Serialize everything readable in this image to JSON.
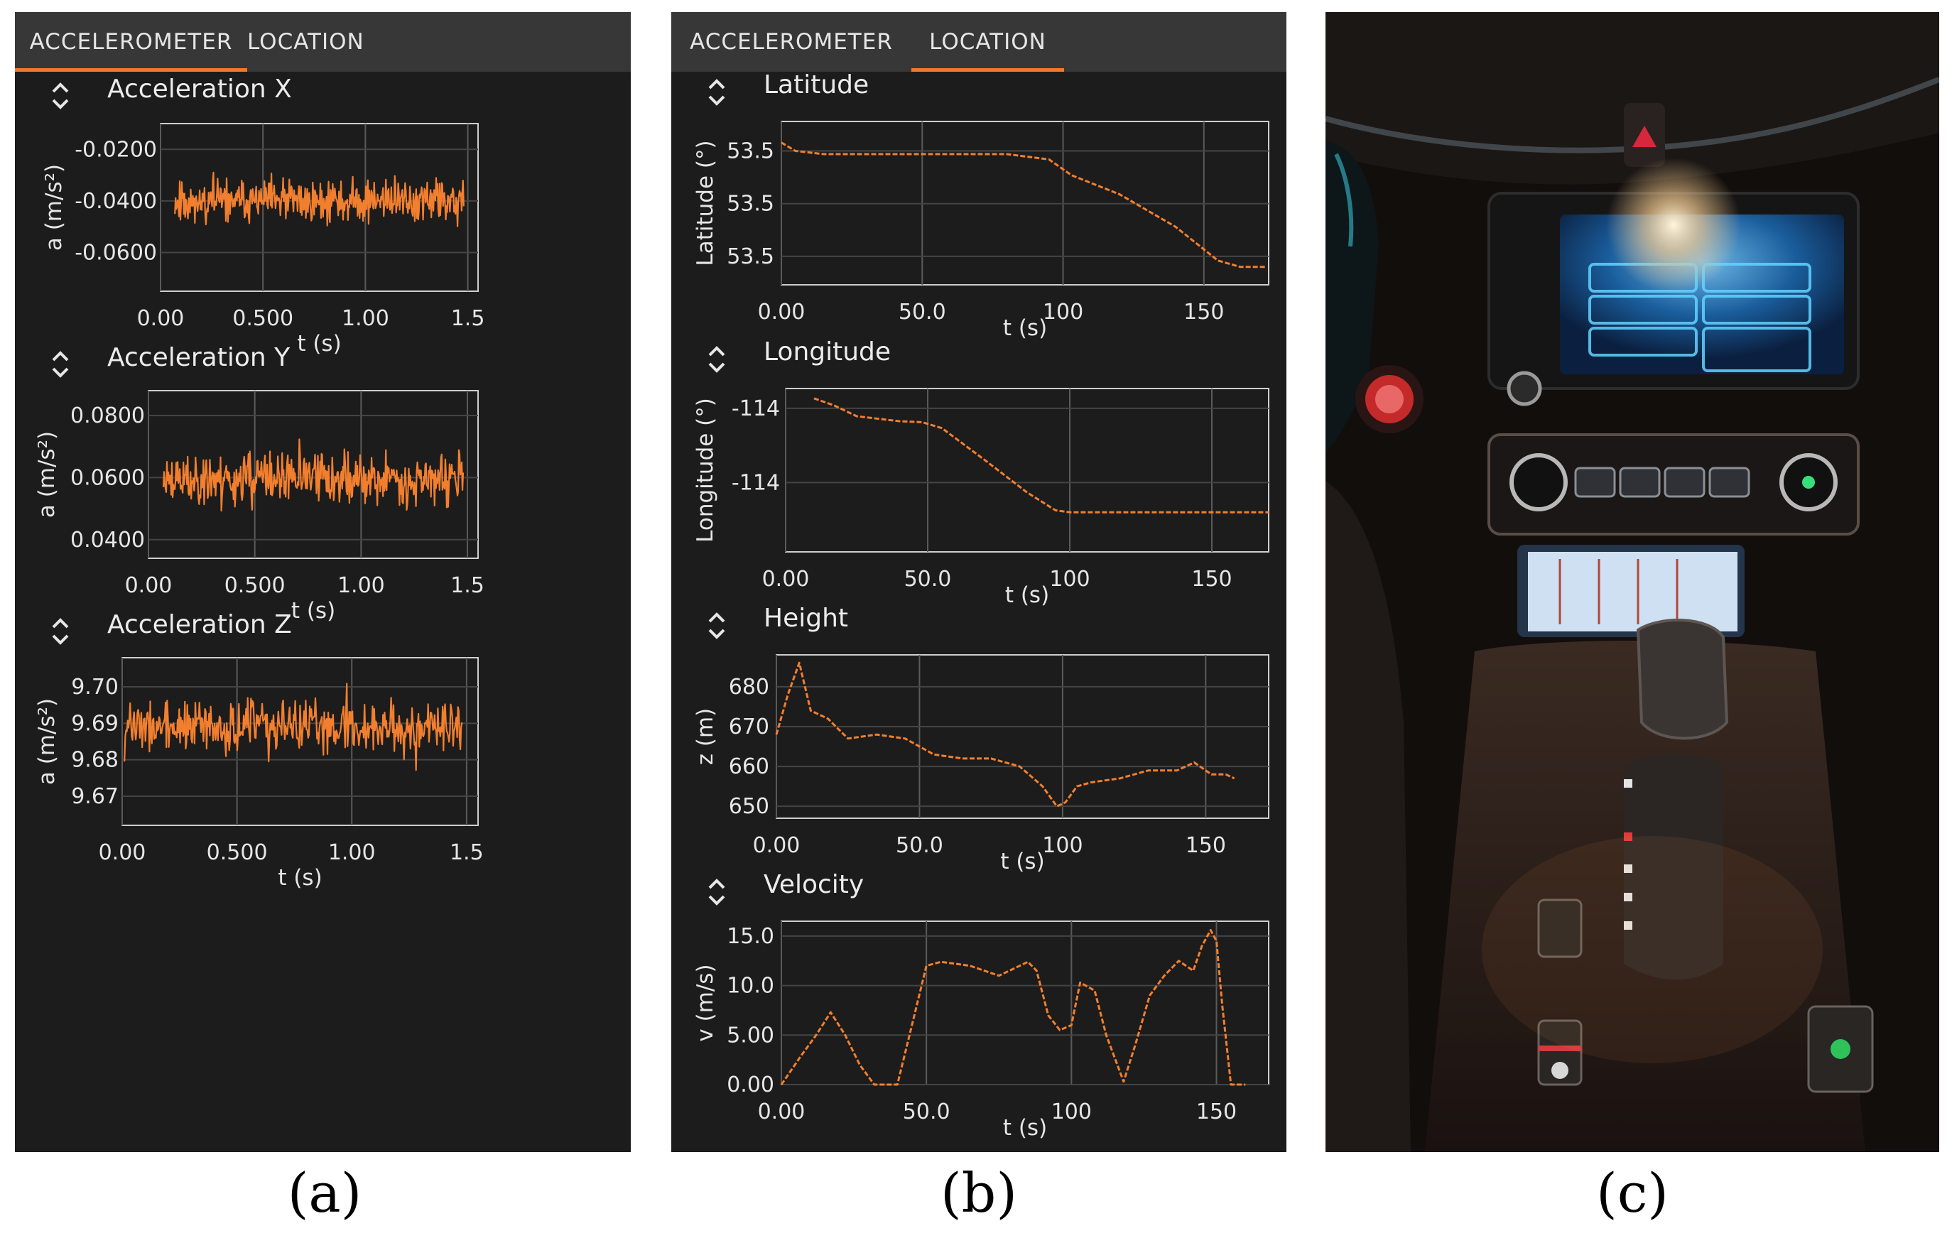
{
  "tabs": [
    "ACCELEROMETER",
    "LOCATION"
  ],
  "colors": {
    "accent": "#f07a2c",
    "trace": "#f27f2e",
    "panel": "#1c1c1c",
    "tabbar": "#373737"
  },
  "captions": [
    "(a)",
    "(b)",
    "(c)"
  ],
  "panel_a": {
    "plots": [
      {
        "title": "Acceleration X",
        "ylabel": "a (m/s²)",
        "xlabel": "t (s)",
        "xticks": [
          "0.00",
          "0.500",
          "1.00",
          "1.5"
        ],
        "yticks": [
          "-0.0200",
          "-0.0400",
          "-0.0600"
        ]
      },
      {
        "title": "Acceleration Y",
        "ylabel": "a (m/s²)",
        "xlabel": "t (s)",
        "xticks": [
          "0.00",
          "0.500",
          "1.00",
          "1.5"
        ],
        "yticks": [
          "0.0800",
          "0.0600",
          "0.0400"
        ]
      },
      {
        "title": "Acceleration Z",
        "ylabel": "a (m/s²)",
        "xlabel": "t (s)",
        "xticks": [
          "0.00",
          "0.500",
          "1.00",
          "1.5"
        ],
        "yticks": [
          "9.70",
          "9.69",
          "9.68",
          "9.67"
        ]
      }
    ]
  },
  "panel_b": {
    "plots": [
      {
        "title": "Latitude",
        "ylabel": "Latitude (°)",
        "xlabel": "t (s)",
        "xticks": [
          "0.00",
          "50.0",
          "100",
          "150"
        ],
        "yticks": [
          "53.5",
          "53.5",
          "53.5"
        ]
      },
      {
        "title": "Longitude",
        "ylabel": "Longitude (°)",
        "xlabel": "t (s)",
        "xticks": [
          "0.00",
          "50.0",
          "100",
          "150"
        ],
        "yticks": [
          "-114",
          "-114"
        ]
      },
      {
        "title": "Height",
        "ylabel": "z (m)",
        "xlabel": "t (s)",
        "xticks": [
          "0.00",
          "50.0",
          "100",
          "150"
        ],
        "yticks": [
          "680",
          "670",
          "660",
          "650"
        ]
      },
      {
        "title": "Velocity",
        "ylabel": "v (m/s)",
        "xlabel": "t (s)",
        "xticks": [
          "0.00",
          "50.0",
          "100",
          "150"
        ],
        "yticks": [
          "15.0",
          "10.0",
          "5.00",
          "0.00"
        ]
      }
    ]
  },
  "chart_data": [
    {
      "type": "line",
      "title": "Acceleration X",
      "xlabel": "t (s)",
      "ylabel": "a (m/s²)",
      "xlim": [
        0,
        1.55
      ],
      "ylim": [
        -0.075,
        -0.01
      ],
      "grid": true,
      "series": [
        {
          "noise": {
            "mean": -0.04,
            "amplitude": 0.012,
            "n": 420,
            "seed": 11,
            "x_range": [
              0.07,
              1.48
            ]
          }
        }
      ]
    },
    {
      "type": "line",
      "title": "Acceleration Y",
      "xlabel": "t (s)",
      "ylabel": "a (m/s²)",
      "xlim": [
        0,
        1.55
      ],
      "ylim": [
        0.034,
        0.088
      ],
      "grid": true,
      "series": [
        {
          "noise": {
            "mean": 0.0595,
            "amplitude": 0.012,
            "n": 420,
            "seed": 23,
            "x_range": [
              0.07,
              1.48
            ]
          }
        }
      ]
    },
    {
      "type": "line",
      "title": "Acceleration Z",
      "xlabel": "t (s)",
      "ylabel": "a (m/s²)",
      "xlim": [
        0,
        1.55
      ],
      "ylim": [
        9.662,
        9.708
      ],
      "grid": true,
      "series": [
        {
          "noise": {
            "mean": 9.689,
            "amplitude": 0.01,
            "n": 420,
            "seed": 37,
            "x_range": [
              0.01,
              1.48
            ]
          }
        }
      ]
    },
    {
      "type": "line",
      "title": "Latitude",
      "xlabel": "t (s)",
      "ylabel": "Latitude (°)",
      "xlim": [
        0,
        173
      ],
      "ylim": [
        -0.27,
        1.28
      ],
      "grid": true,
      "series": [
        {
          "x": [
            0,
            5,
            15,
            40,
            80,
            95,
            103,
            120,
            140,
            155,
            163,
            172
          ],
          "y": [
            1.08,
            1.0,
            0.97,
            0.97,
            0.97,
            0.92,
            0.77,
            0.59,
            0.28,
            -0.04,
            -0.1,
            -0.1
          ]
        }
      ]
    },
    {
      "type": "line",
      "title": "Longitude",
      "xlabel": "t (s)",
      "ylabel": "Longitude (°)",
      "xlim": [
        0,
        170
      ],
      "ylim": [
        -0.55,
        1.1
      ],
      "grid": true,
      "series": [
        {
          "x": [
            10,
            17,
            25,
            40,
            48,
            55,
            70,
            85,
            95,
            100,
            150,
            170
          ],
          "y": [
            1.0,
            0.93,
            0.82,
            0.77,
            0.76,
            0.7,
            0.38,
            0.05,
            -0.13,
            -0.15,
            -0.15,
            -0.15
          ]
        }
      ]
    },
    {
      "type": "line",
      "title": "Height",
      "xlabel": "t (s)",
      "ylabel": "z (m)",
      "xlim": [
        0,
        172
      ],
      "ylim": [
        647,
        688
      ],
      "grid": true,
      "series": [
        {
          "x": [
            0,
            4,
            8,
            12,
            18,
            25,
            35,
            45,
            55,
            65,
            75,
            85,
            93,
            98,
            101,
            105,
            110,
            120,
            130,
            140,
            146,
            152,
            157,
            160
          ],
          "y": [
            668,
            678,
            686,
            674,
            672,
            667,
            668,
            667,
            663,
            662,
            662,
            660,
            655,
            650,
            651,
            655,
            656,
            657,
            659,
            659,
            661,
            658,
            658,
            657
          ]
        }
      ]
    },
    {
      "type": "line",
      "title": "Velocity",
      "xlabel": "t (s)",
      "ylabel": "v (m/s)",
      "xlim": [
        0,
        168
      ],
      "ylim": [
        0,
        16.5
      ],
      "grid": true,
      "series": [
        {
          "x": [
            0,
            7,
            12,
            17,
            22,
            27,
            32,
            36,
            40,
            45,
            50,
            55,
            60,
            65,
            75,
            85,
            88,
            92,
            96,
            100,
            103,
            108,
            112,
            118,
            122,
            127,
            132,
            137,
            142,
            145,
            148,
            150,
            152,
            155,
            160
          ],
          "y": [
            0,
            3,
            5,
            7.3,
            5,
            2,
            0,
            0,
            0,
            6,
            12,
            12.4,
            12.2,
            12,
            11,
            12.4,
            11.5,
            7,
            5.5,
            6,
            10.3,
            9.5,
            5,
            0.3,
            4,
            9,
            11,
            12.5,
            11.5,
            14,
            15.6,
            14.5,
            8,
            0,
            0
          ]
        }
      ]
    }
  ]
}
